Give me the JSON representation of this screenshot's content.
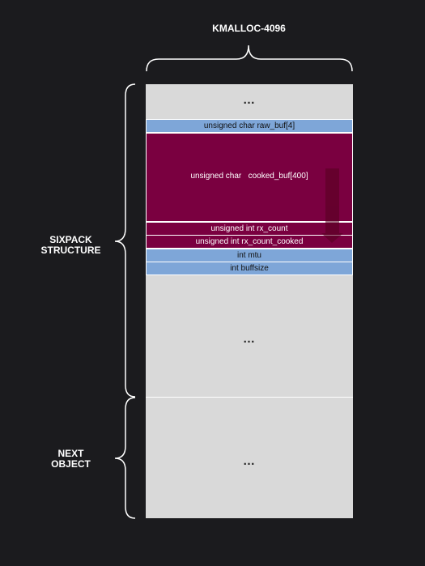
{
  "top_label": "KMALLOC-4096",
  "ellipsis": "…",
  "fields": {
    "raw_buf": "unsigned char raw_buf[4]",
    "cooked_buf": "unsigned char   cooked_buf[400]",
    "rx_count": "unsigned int rx_count",
    "rx_count_cooked": "unsigned int rx_count_cooked",
    "mtu": "int mtu",
    "buffsize": "int buffsize"
  },
  "side_labels": {
    "sixpack": [
      "SIXPACK",
      "STRUCTURE"
    ],
    "next": [
      "NEXT",
      "OBJECT"
    ]
  },
  "colors": {
    "background": "#1b1b1e",
    "field_blue": "#7ea6d8",
    "field_red": "#7a0040",
    "memory_gray": "#d9d9d9"
  }
}
